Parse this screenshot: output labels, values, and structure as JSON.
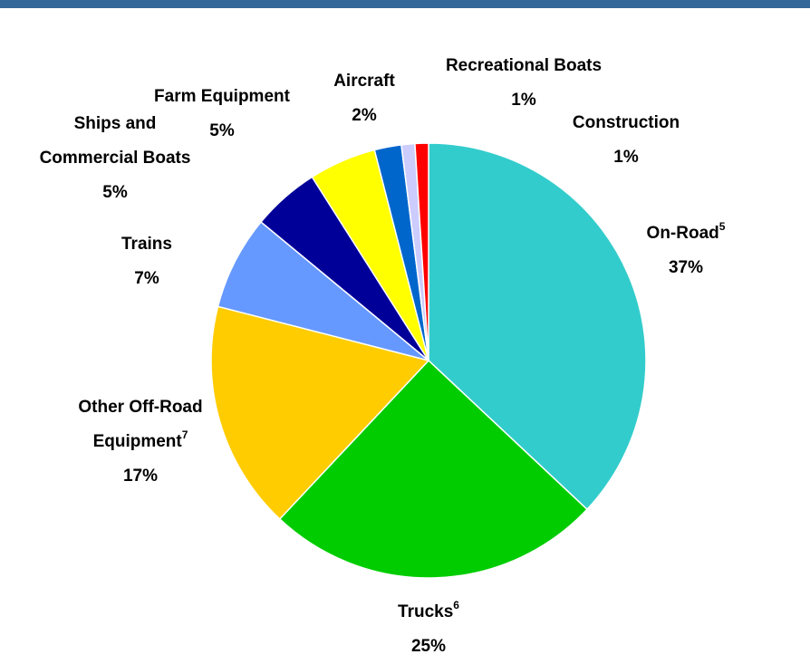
{
  "chart_data": {
    "type": "pie",
    "categories": [
      "On-Road",
      "Trucks",
      "Other Off-Road\nEquipment",
      "Trains",
      "Ships and\nCommercial Boats",
      "Farm Equipment",
      "Aircraft",
      "Recreational Boats",
      "Construction"
    ],
    "label_notes": [
      "5",
      "6",
      "7",
      null,
      null,
      null,
      null,
      null,
      null
    ],
    "values": [
      37,
      25,
      17,
      7,
      5,
      5,
      2,
      1,
      1
    ],
    "value_labels": [
      "37%",
      "25%",
      "17%",
      "7%",
      "5%",
      "5%",
      "2%",
      "1%",
      "1%"
    ],
    "colors": [
      "#33cccc",
      "#00cc00",
      "#ffcc00",
      "#6699ff",
      "#000099",
      "#ffff00",
      "#0066cc",
      "#ccccff",
      "#ff0000"
    ]
  }
}
